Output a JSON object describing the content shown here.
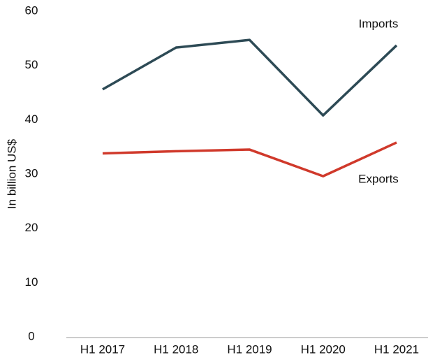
{
  "chart_data": {
    "type": "line",
    "y_label": "In billion US$",
    "categories": [
      "H1 2017",
      "H1 2018",
      "H1 2019",
      "H1 2020",
      "H1 2021"
    ],
    "series": [
      {
        "name": "Imports",
        "color": "#2d4a55",
        "values": [
          45.6,
          53.3,
          54.7,
          40.8,
          53.7
        ]
      },
      {
        "name": "Exports",
        "color": "#d0392b",
        "values": [
          33.8,
          34.2,
          34.5,
          29.6,
          35.8
        ]
      }
    ],
    "ylim": [
      0,
      60
    ],
    "yticks": [
      0,
      10,
      20,
      30,
      40,
      50,
      60
    ],
    "grid": false
  }
}
